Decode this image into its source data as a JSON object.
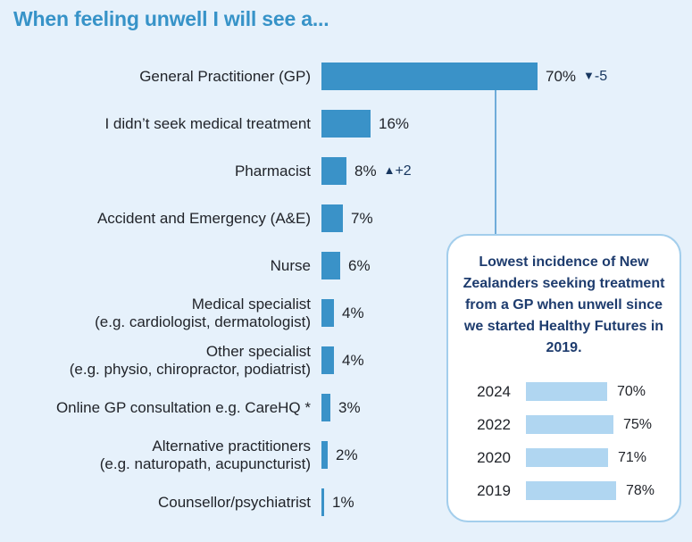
{
  "colors": {
    "background": "#e6f1fb",
    "title_blue": "#3793c8",
    "bar_blue": "#3a92c8",
    "mini_bar_blue": "#b0d6f1",
    "navy_indicator": "#17365f",
    "callout_text_navy": "#1e3c6e",
    "callout_border": "#a3ceec",
    "label_dark": "#21242a",
    "connector_blue": "#6facd9"
  },
  "chart_data": [
    {
      "type": "bar",
      "orientation": "horizontal",
      "title": "When feeling unwell I will see a...",
      "categories": [
        "General Practitioner (GP)",
        "I didn’t seek medical treatment",
        "Pharmacist",
        "Accident and Emergency (A&E)",
        "Nurse",
        "Medical specialist (e.g. cardiologist, dermatologist)",
        "Other specialist (e.g. physio, chiropractor, podiatrist)",
        "Online GP consultation e.g. CareHQ *",
        "Alternative practitioners (e.g. naturopath, acupuncturist)",
        "Counsellor/psychiatrist"
      ],
      "values": [
        70,
        16,
        8,
        7,
        6,
        4,
        4,
        3,
        2,
        1
      ],
      "value_labels": [
        "70%",
        "16%",
        "8%",
        "7%",
        "6%",
        "4%",
        "4%",
        "3%",
        "2%",
        "1%"
      ],
      "changes": [
        {
          "direction": "down",
          "glyph": "▼",
          "text": "-5"
        },
        null,
        {
          "direction": "up",
          "glyph": "▲",
          "text": "+2"
        },
        null,
        null,
        null,
        null,
        null,
        null,
        null
      ],
      "xlim": [
        0,
        100
      ],
      "grid": false,
      "legend": false
    },
    {
      "type": "bar",
      "orientation": "horizontal",
      "categories": [
        "2024",
        "2022",
        "2020",
        "2019"
      ],
      "values": [
        70,
        75,
        71,
        78
      ],
      "value_labels": [
        "70%",
        "75%",
        "71%",
        "78%"
      ],
      "xlim": [
        0,
        100
      ],
      "grid": false,
      "legend": false
    }
  ],
  "callout": {
    "text": "Lowest incidence of New Zealanders seeking treatment from a GP when unwell since we started Healthy Futures in 2019."
  }
}
